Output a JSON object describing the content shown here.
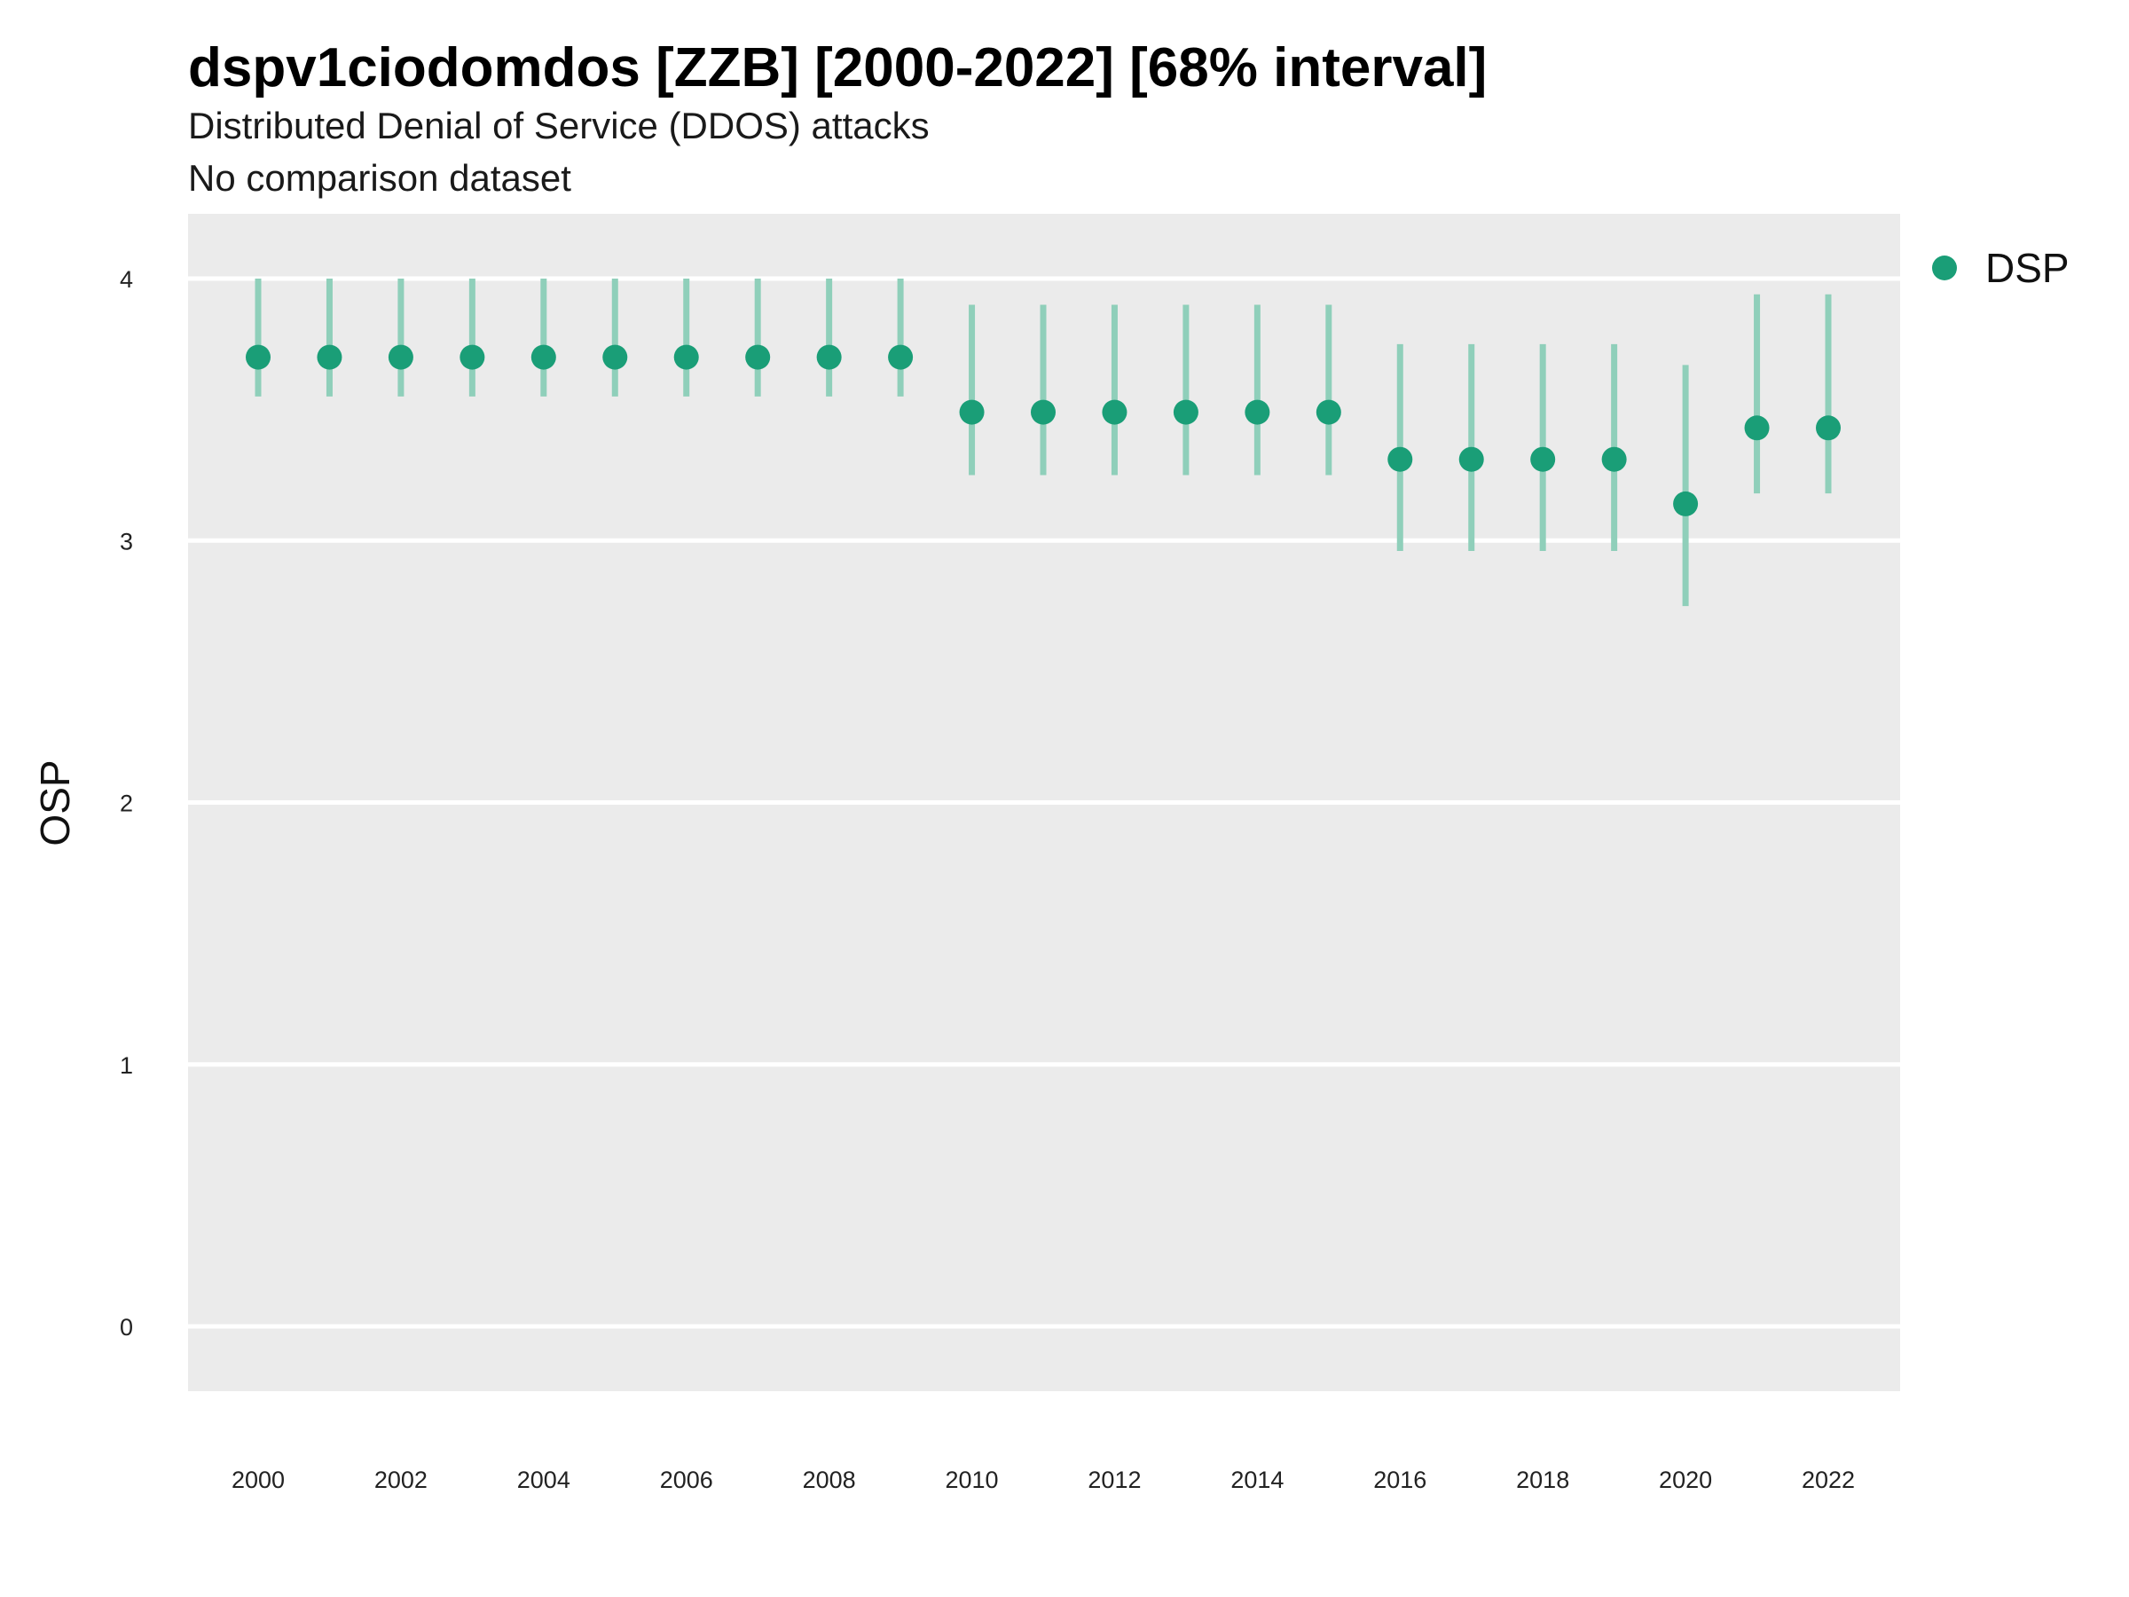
{
  "chart_data": {
    "type": "scatter",
    "title": "dspv1ciodomdos [ZZB] [2000-2022] [68% interval]",
    "subtitles": [
      "Distributed Denial of Service (DDOS) attacks",
      "No comparison dataset"
    ],
    "xlabel": "",
    "ylabel": "OSP",
    "ylim": [
      -0.25,
      4.25
    ],
    "xlim": [
      1999,
      2023
    ],
    "yticks": [
      0,
      1,
      2,
      3,
      4
    ],
    "xticks": [
      2000,
      2002,
      2004,
      2006,
      2008,
      2010,
      2012,
      2014,
      2016,
      2018,
      2020,
      2022
    ],
    "grid": true,
    "legend_position": "top-right",
    "colors": {
      "point": "#1a9e77",
      "interval": "#8fcfba",
      "panel": "#ebebeb",
      "grid": "#ffffff"
    },
    "series": [
      {
        "name": "DSP",
        "x": [
          2000,
          2001,
          2002,
          2003,
          2004,
          2005,
          2006,
          2007,
          2008,
          2009,
          2010,
          2011,
          2012,
          2013,
          2014,
          2015,
          2016,
          2017,
          2018,
          2019,
          2020,
          2021,
          2022
        ],
        "y": [
          3.7,
          3.7,
          3.7,
          3.7,
          3.7,
          3.7,
          3.7,
          3.7,
          3.7,
          3.7,
          3.49,
          3.49,
          3.49,
          3.49,
          3.49,
          3.49,
          3.31,
          3.31,
          3.31,
          3.31,
          3.14,
          3.43,
          3.43
        ],
        "lower": [
          3.55,
          3.55,
          3.55,
          3.55,
          3.55,
          3.55,
          3.55,
          3.55,
          3.55,
          3.55,
          3.25,
          3.25,
          3.25,
          3.25,
          3.25,
          3.25,
          2.96,
          2.96,
          2.96,
          2.96,
          2.75,
          3.18,
          3.18
        ],
        "upper": [
          4.0,
          4.0,
          4.0,
          4.0,
          4.0,
          4.0,
          4.0,
          4.0,
          4.0,
          4.0,
          3.9,
          3.9,
          3.9,
          3.9,
          3.9,
          3.9,
          3.75,
          3.75,
          3.75,
          3.75,
          3.67,
          3.94,
          3.94
        ]
      }
    ]
  }
}
